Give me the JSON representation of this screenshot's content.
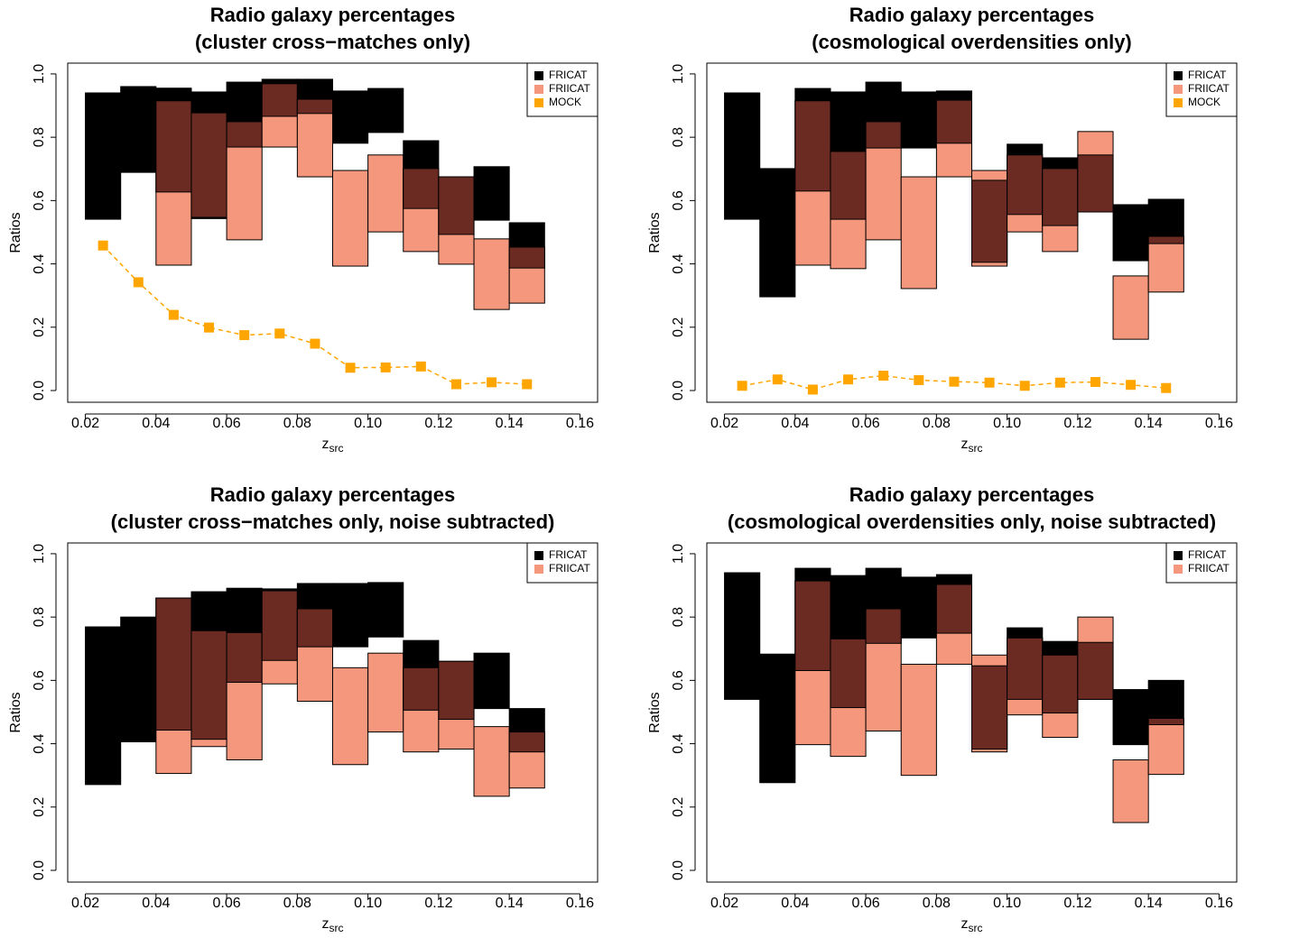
{
  "chart_data": [
    {
      "type": "range-bar",
      "title": [
        "Radio galaxy percentages",
        "(cluster cross−matches only)"
      ],
      "xlabel": "z",
      "xlabel_sub": "src",
      "ylabel": "Ratios",
      "bins": [
        0.02,
        0.03,
        0.04,
        0.05,
        0.06,
        0.07,
        0.08,
        0.09,
        0.1,
        0.11,
        0.12,
        0.13,
        0.14,
        0.15
      ],
      "overlap_color": "#6b2b23",
      "series": [
        {
          "name": "FRICAT",
          "color": "#000000",
          "lower": [
            0.541,
            0.689,
            0.627,
            0.543,
            0.769,
            0.866,
            0.875,
            0.781,
            0.815,
            0.575,
            0.493,
            0.538,
            0.387
          ],
          "upper": [
            0.94,
            0.96,
            0.955,
            0.943,
            0.974,
            0.983,
            0.983,
            0.946,
            0.954,
            0.789,
            0.675,
            0.707,
            0.53
          ]
        },
        {
          "name": "FRIICAT",
          "color": "#f5977c",
          "lower": [
            null,
            null,
            0.396,
            0.547,
            0.476,
            0.769,
            0.675,
            0.393,
            0.501,
            0.439,
            0.399,
            0.256,
            0.276
          ],
          "upper": [
            null,
            null,
            0.915,
            0.877,
            0.849,
            0.969,
            0.92,
            0.695,
            0.744,
            0.701,
            0.675,
            0.479,
            0.453
          ]
        },
        {
          "name": "MOCK",
          "color": "#ffa500",
          "x": [
            0.025,
            0.035,
            0.045,
            0.055,
            0.065,
            0.075,
            0.085,
            0.095,
            0.105,
            0.115,
            0.125,
            0.135,
            0.145
          ],
          "values": [
            0.458,
            0.342,
            0.239,
            0.199,
            0.175,
            0.18,
            0.148,
            0.072,
            0.073,
            0.076,
            0.02,
            0.026,
            0.02
          ]
        }
      ],
      "xlim": [
        0.015,
        0.165
      ],
      "ylim": [
        -0.037,
        1.034
      ],
      "xticks": [
        0.02,
        0.04,
        0.06,
        0.08,
        {
          "value": 0.1,
          "label": "0.10"
        },
        0.12,
        0.14,
        0.16
      ],
      "yticks": [
        {
          "value": 0,
          "label": "0.0"
        },
        0.2,
        0.4,
        0.6,
        0.8,
        {
          "value": 1,
          "label": "1.0"
        }
      ],
      "legend": "topright"
    },
    {
      "type": "range-bar",
      "title": [
        "Radio galaxy percentages",
        "(cosmological overdensities only)"
      ],
      "xlabel": "z",
      "xlabel_sub": "src",
      "ylabel": "Ratios",
      "bins": [
        0.02,
        0.03,
        0.04,
        0.05,
        0.06,
        0.07,
        0.08,
        0.09,
        0.1,
        0.11,
        0.12,
        0.13,
        0.14,
        0.15
      ],
      "overlap_color": "#6b2b23",
      "series": [
        {
          "name": "FRICAT",
          "color": "#000000",
          "lower": [
            0.541,
            0.296,
            0.63,
            0.541,
            0.766,
            0.766,
            0.781,
            0.405,
            0.556,
            0.521,
            0.564,
            0.41,
            0.464
          ],
          "upper": [
            0.94,
            0.701,
            0.954,
            0.943,
            0.974,
            0.943,
            0.946,
            0.664,
            0.778,
            0.735,
            0.744,
            0.587,
            0.604
          ]
        },
        {
          "name": "FRIICAT",
          "color": "#f5977c",
          "lower": [
            null,
            null,
            0.396,
            0.385,
            0.476,
            0.322,
            0.675,
            0.393,
            0.501,
            0.439,
            0.564,
            0.162,
            0.311
          ],
          "upper": [
            null,
            null,
            0.915,
            0.755,
            0.849,
            0.675,
            0.917,
            0.695,
            0.744,
            0.701,
            0.818,
            0.362,
            0.487
          ]
        },
        {
          "name": "MOCK",
          "color": "#ffa500",
          "x": [
            0.025,
            0.035,
            0.045,
            0.055,
            0.065,
            0.075,
            0.085,
            0.095,
            0.105,
            0.115,
            0.125,
            0.135,
            0.145
          ],
          "values": [
            0.015,
            0.035,
            0.003,
            0.035,
            0.047,
            0.033,
            0.028,
            0.025,
            0.015,
            0.025,
            0.027,
            0.018,
            0.008
          ]
        }
      ],
      "xlim": [
        0.015,
        0.165
      ],
      "ylim": [
        -0.037,
        1.034
      ],
      "xticks": [
        0.02,
        0.04,
        0.06,
        0.08,
        {
          "value": 0.1,
          "label": "0.10"
        },
        0.12,
        0.14,
        0.16
      ],
      "yticks": [
        {
          "value": 0,
          "label": "0.0"
        },
        0.2,
        0.4,
        0.6,
        0.8,
        {
          "value": 1,
          "label": "1.0"
        }
      ],
      "legend": "topright"
    },
    {
      "type": "range-bar",
      "title": [
        "Radio galaxy percentages",
        "(cluster cross−matches only, noise subtracted)"
      ],
      "xlabel": "z",
      "xlabel_sub": "src",
      "ylabel": "Ratios",
      "bins": [
        0.02,
        0.03,
        0.04,
        0.05,
        0.06,
        0.07,
        0.08,
        0.09,
        0.1,
        0.11,
        0.12,
        0.13,
        0.14,
        0.15
      ],
      "overlap_color": "#6b2b23",
      "series": [
        {
          "name": "FRICAT",
          "color": "#000000",
          "lower": [
            0.271,
            0.406,
            0.443,
            0.414,
            0.594,
            0.663,
            0.706,
            0.706,
            0.737,
            0.506,
            0.477,
            0.511,
            0.374
          ],
          "upper": [
            0.769,
            0.8,
            0.86,
            0.88,
            0.891,
            0.889,
            0.906,
            0.906,
            0.909,
            0.726,
            0.66,
            0.686,
            0.511
          ]
        },
        {
          "name": "FRIICAT",
          "color": "#f5977c",
          "lower": [
            null,
            null,
            0.306,
            0.391,
            0.349,
            0.589,
            0.534,
            0.334,
            0.437,
            0.374,
            0.383,
            0.234,
            0.26
          ],
          "upper": [
            null,
            null,
            0.86,
            0.757,
            0.751,
            0.883,
            0.826,
            0.64,
            0.686,
            0.64,
            0.66,
            0.454,
            0.437
          ]
        }
      ],
      "xlim": [
        0.015,
        0.165
      ],
      "ylim": [
        -0.037,
        1.034
      ],
      "xticks": [
        0.02,
        0.04,
        0.06,
        0.08,
        {
          "value": 0.1,
          "label": "0.10"
        },
        0.12,
        0.14,
        0.16
      ],
      "yticks": [
        {
          "value": 0,
          "label": "0.0"
        },
        0.2,
        0.4,
        0.6,
        0.8,
        {
          "value": 1,
          "label": "1.0"
        }
      ],
      "legend": "topright"
    },
    {
      "type": "range-bar",
      "title": [
        "Radio galaxy percentages",
        "(cosmological overdensities only, noise subtracted)"
      ],
      "xlabel": "z",
      "xlabel_sub": "src",
      "ylabel": "Ratios",
      "bins": [
        0.02,
        0.03,
        0.04,
        0.05,
        0.06,
        0.07,
        0.08,
        0.09,
        0.1,
        0.11,
        0.12,
        0.13,
        0.14,
        0.15
      ],
      "overlap_color": "#6b2b23",
      "series": [
        {
          "name": "FRICAT",
          "color": "#000000",
          "lower": [
            0.54,
            0.277,
            0.631,
            0.514,
            0.717,
            0.734,
            0.749,
            0.383,
            0.54,
            0.497,
            0.54,
            0.397,
            0.46
          ],
          "upper": [
            0.94,
            0.683,
            0.954,
            0.931,
            0.954,
            0.926,
            0.934,
            0.646,
            0.766,
            0.723,
            0.72,
            0.571,
            0.6
          ]
        },
        {
          "name": "FRIICAT",
          "color": "#f5977c",
          "lower": [
            null,
            null,
            0.397,
            0.36,
            0.44,
            0.3,
            0.651,
            0.374,
            0.491,
            0.42,
            0.54,
            0.151,
            0.303
          ],
          "upper": [
            null,
            null,
            0.914,
            0.731,
            0.826,
            0.651,
            0.903,
            0.68,
            0.734,
            0.68,
            0.8,
            0.349,
            0.48
          ]
        }
      ],
      "xlim": [
        0.015,
        0.165
      ],
      "ylim": [
        -0.037,
        1.034
      ],
      "xticks": [
        0.02,
        0.04,
        0.06,
        0.08,
        {
          "value": 0.1,
          "label": "0.10"
        },
        0.12,
        0.14,
        0.16
      ],
      "yticks": [
        {
          "value": 0,
          "label": "0.0"
        },
        0.2,
        0.4,
        0.6,
        0.8,
        {
          "value": 1,
          "label": "1.0"
        }
      ],
      "legend": "topright"
    }
  ]
}
